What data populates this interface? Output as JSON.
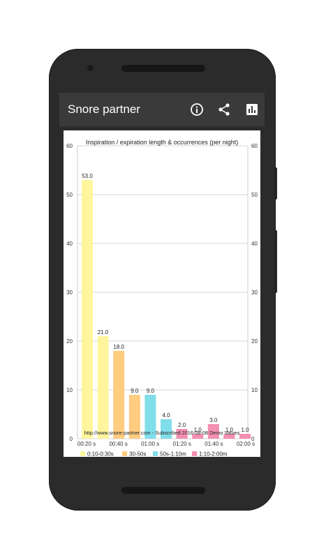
{
  "app": {
    "title": "Snore partner",
    "icons": [
      "info-icon",
      "share-icon",
      "chart-icon"
    ]
  },
  "colors": {
    "appbar": "#3a3a3a",
    "yellow": "#fff59d",
    "orange": "#ffcc80",
    "cyan": "#80deea",
    "pink": "#f48fb1"
  },
  "chart_data": {
    "type": "bar",
    "title": "Inspiration / expiration length & occurrences (per night)",
    "ylim": [
      0,
      60
    ],
    "y_ticks": [
      "0",
      "10",
      "20",
      "30",
      "40",
      "50",
      "60"
    ],
    "x_ticks": [
      "00:20 s",
      "00:40 s",
      "01:00 s",
      "01:20 s",
      "01:40 s",
      "02:00 s"
    ],
    "bars": [
      {
        "value": 53.0,
        "label": "53.0",
        "group": 0
      },
      {
        "value": 21.0,
        "label": "21.0",
        "group": 0
      },
      {
        "value": 18.0,
        "label": "18.0",
        "group": 1
      },
      {
        "value": 9.0,
        "label": "9.0",
        "group": 1
      },
      {
        "value": 9.0,
        "label": "9.0",
        "group": 2
      },
      {
        "value": 4.0,
        "label": "4.0",
        "group": 2
      },
      {
        "value": 2.0,
        "label": "2.0",
        "group": 3
      },
      {
        "value": 1.0,
        "label": "1.0",
        "group": 3
      },
      {
        "value": 3.0,
        "label": "3.0",
        "group": 3
      },
      {
        "value": 1.0,
        "label": "1.0",
        "group": 3
      },
      {
        "value": 1.0,
        "label": "1.0",
        "group": 3
      }
    ],
    "legend": [
      {
        "label": "0:10-0:30s",
        "color": "#fff59d"
      },
      {
        "label": "30-50s",
        "color": "#ffcc80"
      },
      {
        "label": "50s-1:10m",
        "color": "#80deea"
      },
      {
        "label": "1:10-2:00m",
        "color": "#f48fb1"
      }
    ],
    "footer": "http://www.snore-partner.com - Subscribed 2016-08-08 Demo Values",
    "grid": true
  }
}
